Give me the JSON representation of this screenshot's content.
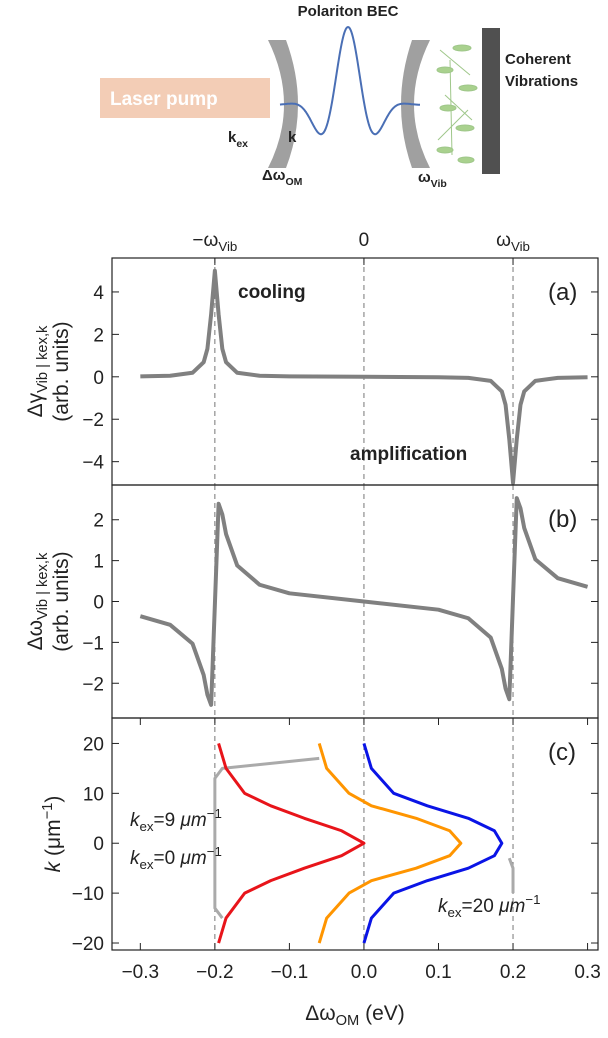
{
  "schematic": {
    "title": "Polariton BEC",
    "pump": "Laser pump",
    "k_ex": [
      {
        "text": "k"
      },
      {
        "text": "ex",
        "style": "sub"
      }
    ],
    "k": "k",
    "detuning": [
      {
        "text": "Δω"
      },
      {
        "text": "OM",
        "style": "sub"
      }
    ],
    "omega_vib": [
      {
        "text": "ω"
      },
      {
        "text": "Vib",
        "style": "sub"
      }
    ],
    "vibrations": [
      "Coherent",
      "Vibrations"
    ]
  },
  "chart_data": [
    {
      "type": "line",
      "panel_label": "(a)",
      "ylabel": [
        [
          {
            "text": "Δγ"
          },
          {
            "text": "Vib | k",
            "style": "sub"
          },
          {
            "text": "ex",
            "style": "sub"
          },
          {
            "text": ",k",
            "style": "sub"
          }
        ],
        "(arb. units)"
      ],
      "x": [
        -0.3,
        -0.26,
        -0.23,
        -0.215,
        -0.21,
        -0.205,
        -0.2,
        -0.195,
        -0.19,
        -0.185,
        -0.17,
        -0.14,
        -0.1,
        0,
        0.1,
        0.14,
        0.17,
        0.185,
        0.19,
        0.195,
        0.2,
        0.205,
        0.21,
        0.215,
        0.23,
        0.26,
        0.3
      ],
      "series": [
        {
          "color": "#808080",
          "values": [
            0.02,
            0.05,
            0.19,
            0.69,
            1.32,
            2.95,
            5,
            2.95,
            1.32,
            0.69,
            0.19,
            0.05,
            0.02,
            0,
            -0.02,
            -0.05,
            -0.19,
            -0.69,
            -1.32,
            -2.95,
            -5,
            -2.95,
            -1.32,
            -0.69,
            -0.19,
            -0.05,
            -0.02
          ]
        }
      ],
      "xlim": [
        -0.338,
        0.314
      ],
      "ylim": [
        -5.1,
        5.6
      ],
      "yticks": [
        {
          "value": -4,
          "label": "−4"
        },
        {
          "value": -2,
          "label": "−2"
        },
        0,
        2,
        4
      ],
      "x2ticks": [
        {
          "value": -0.2,
          "label": [
            {
              "text": "−ω"
            },
            {
              "text": "Vib",
              "style": "sub"
            }
          ]
        },
        0,
        {
          "value": 0.2,
          "label": [
            {
              "text": "ω"
            },
            {
              "text": "Vib",
              "style": "sub"
            }
          ]
        }
      ],
      "vlines": [
        -0.2,
        0,
        0.2
      ],
      "annotations": [
        "cooling",
        "amplification"
      ]
    },
    {
      "type": "line",
      "panel_label": "(b)",
      "ylabel": [
        [
          {
            "text": "Δω"
          },
          {
            "text": "Vib | k",
            "style": "sub"
          },
          {
            "text": "ex",
            "style": "sub"
          },
          {
            "text": ",k",
            "style": "sub"
          }
        ],
        "(arb. units)"
      ],
      "x": [
        -0.3,
        -0.26,
        -0.23,
        -0.215,
        -0.21,
        -0.205,
        -0.2,
        -0.195,
        -0.19,
        -0.185,
        -0.17,
        -0.14,
        -0.1,
        0,
        0.1,
        0.14,
        0.17,
        0.185,
        0.19,
        0.195,
        0.2,
        0.205,
        0.21,
        0.215,
        0.23,
        0.26,
        0.3
      ],
      "series": [
        {
          "color": "#808080",
          "values": [
            -0.36,
            -0.57,
            -1.03,
            -1.8,
            -2.28,
            -2.53,
            -0.08,
            2.39,
            2.13,
            1.65,
            0.88,
            0.41,
            0.2,
            0,
            -0.2,
            -0.41,
            -0.88,
            -1.65,
            -2.13,
            -2.39,
            0.08,
            2.53,
            2.28,
            1.8,
            1.03,
            0.57,
            0.36
          ]
        }
      ],
      "xlim": [
        -0.338,
        0.314
      ],
      "ylim": [
        -2.85,
        2.85
      ],
      "yticks": [
        {
          "value": -2,
          "label": "−2"
        },
        {
          "value": -1,
          "label": "−1"
        },
        0,
        1,
        2
      ],
      "vlines": [
        -0.2,
        0,
        0.2
      ]
    },
    {
      "type": "line",
      "panel_label": "(c)",
      "ylabel": [
        [
          {
            "text": "k",
            "style": "italic"
          },
          {
            "text": " (μm"
          },
          {
            "text": "−1",
            "style": "sup"
          },
          {
            "text": ")"
          }
        ]
      ],
      "xlabel": [
        {
          "text": "Δω"
        },
        {
          "text": "OM",
          "style": "sub"
        },
        {
          "text": " (eV)"
        }
      ],
      "series": [
        {
          "color": "#aaaaaa",
          "x": [
            -0.19,
            -0.2,
            -0.2,
            -0.19,
            -0.06,
            null,
            0.195,
            0.2,
            0.2
          ],
          "values": [
            -15,
            -13,
            13,
            15,
            17,
            null,
            -3,
            -5,
            -10
          ]
        },
        {
          "color": "#e8141a",
          "x": [
            -0.195,
            -0.185,
            -0.16,
            -0.125,
            -0.08,
            -0.03,
            0,
            -0.03,
            -0.08,
            -0.125,
            -0.16,
            -0.185,
            -0.195
          ],
          "values": [
            -20,
            -15,
            -10,
            -7.5,
            -5,
            -2.5,
            0,
            2.5,
            5,
            7.5,
            10,
            15,
            20
          ]
        },
        {
          "color": "#ff9500",
          "x": [
            -0.06,
            -0.05,
            -0.02,
            0.01,
            0.07,
            0.115,
            0.13,
            0.115,
            0.07,
            0.01,
            -0.02,
            -0.05,
            -0.06
          ],
          "values": [
            -20,
            -15,
            -10,
            -7.5,
            -5,
            -2.5,
            0,
            2.5,
            5,
            7.5,
            10,
            15,
            20
          ]
        },
        {
          "color": "#0a14e6",
          "x": [
            0,
            0.01,
            0.04,
            0.085,
            0.14,
            0.175,
            0.185,
            0.175,
            0.14,
            0.085,
            0.04,
            0.01,
            0
          ],
          "values": [
            -20,
            -15,
            -10,
            -7.5,
            -5,
            -2.5,
            0,
            2.5,
            5,
            7.5,
            10,
            15,
            20
          ]
        }
      ],
      "xlim": [
        -0.338,
        0.314
      ],
      "ylim": [
        -21.4,
        25.1
      ],
      "xticks": [
        {
          "value": -0.3,
          "label": "−0.3"
        },
        {
          "value": -0.2,
          "label": "−0.2"
        },
        {
          "value": -0.1,
          "label": "−0.1"
        },
        {
          "value": 0,
          "label": "0.0"
        },
        0.1,
        0.2,
        0.3
      ],
      "yticks": [
        {
          "value": -20,
          "label": "−20"
        },
        {
          "value": -10,
          "label": "−10"
        },
        0,
        10,
        20
      ],
      "vlines": [
        -0.2,
        0,
        0.2
      ],
      "annotations": [
        [
          {
            "text": "k",
            "style": "italic"
          },
          {
            "text": "ex",
            "style": "sub"
          },
          {
            "text": "=9 "
          },
          {
            "text": "μm",
            "style": "italic"
          },
          {
            "text": "−1",
            "style": "sup"
          }
        ],
        [
          {
            "text": "k",
            "style": "italic"
          },
          {
            "text": "ex",
            "style": "sub"
          },
          {
            "text": "=0 "
          },
          {
            "text": "μm",
            "style": "italic"
          },
          {
            "text": "−1",
            "style": "sup"
          }
        ],
        [
          {
            "text": "k",
            "style": "italic"
          },
          {
            "text": "ex",
            "style": "sub"
          },
          {
            "text": "=20 "
          },
          {
            "text": "μm",
            "style": "italic"
          },
          {
            "text": "−1",
            "style": "sup"
          }
        ]
      ]
    }
  ]
}
